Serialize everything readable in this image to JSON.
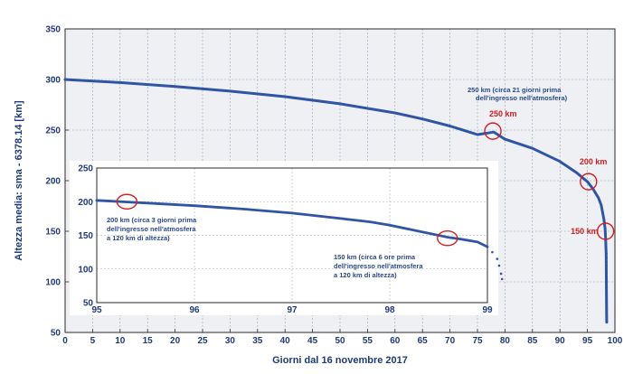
{
  "chart_data": {
    "type": "line",
    "xlabel": "Giorni dal 16 novembre 2017",
    "ylabel": "Altezza media: sma - 6378.14 [km]",
    "xlim": [
      0,
      100
    ],
    "ylim": [
      50,
      350
    ],
    "xticks": [
      0,
      5,
      10,
      15,
      20,
      25,
      30,
      35,
      40,
      45,
      50,
      55,
      60,
      65,
      70,
      75,
      80,
      85,
      90,
      95,
      100
    ],
    "yticks": [
      50,
      100,
      150,
      200,
      250,
      300,
      350
    ],
    "grid": true,
    "series": [
      {
        "color": "#2f55a4",
        "x": [
          0,
          10,
          20,
          30,
          40,
          50,
          60,
          65,
          70,
          75,
          78,
          80,
          85,
          90,
          93,
          95,
          96,
          97,
          97.5,
          98,
          98.2,
          98.3,
          98.4,
          98.5
        ],
        "y": [
          300,
          297,
          293,
          288.5,
          283,
          276,
          267,
          261,
          254,
          245.5,
          248,
          241,
          232,
          219,
          208,
          199,
          192,
          183,
          176,
          162,
          153,
          143,
          128,
          60
        ]
      }
    ],
    "annotations": [
      {
        "text": "250 km (circa 21 giorni prima",
        "text2": "dell'ingresso nell'atmosfera)",
        "x": 77.8,
        "y": 249
      },
      {
        "label": "250 km",
        "x": 77.8,
        "y": 249
      },
      {
        "label": "200 km",
        "x": 95.2,
        "y": 199
      },
      {
        "label": "150 km",
        "x": 98.3,
        "y": 150
      }
    ],
    "inset": {
      "type": "line",
      "xlim": [
        95,
        99
      ],
      "ylim": [
        50,
        250
      ],
      "xticks": [
        95,
        96,
        97,
        98,
        99
      ],
      "yticks": [
        50,
        100,
        150,
        200,
        250
      ],
      "grid": true,
      "series": [
        {
          "color": "#2f55a4",
          "x": [
            95,
            95.5,
            96,
            96.5,
            97,
            97.5,
            97.8,
            98,
            98.2,
            98.5,
            98.6,
            98.7,
            98.9,
            99.0,
            99.05,
            99.1,
            99.12,
            99.14,
            99.15
          ],
          "y": [
            202,
            198,
            194,
            189,
            183,
            175,
            170,
            165,
            159,
            150,
            147,
            145,
            140,
            133,
            125,
            115,
            105,
            93,
            85
          ]
        }
      ],
      "annotations": [
        {
          "line1": "200 km (circa 3 giorni prima",
          "line2": "dell'ingresso nell'atmosfera",
          "line3": "a 120 km di altezza)",
          "x": 95.3,
          "y": 200
        },
        {
          "line1": "150 km (circa 6 ore prima",
          "line2": "dell'ingresso nell'atmosfera",
          "line3": "a 120 km di altezza)",
          "x": 98.6,
          "y": 147
        }
      ]
    }
  }
}
